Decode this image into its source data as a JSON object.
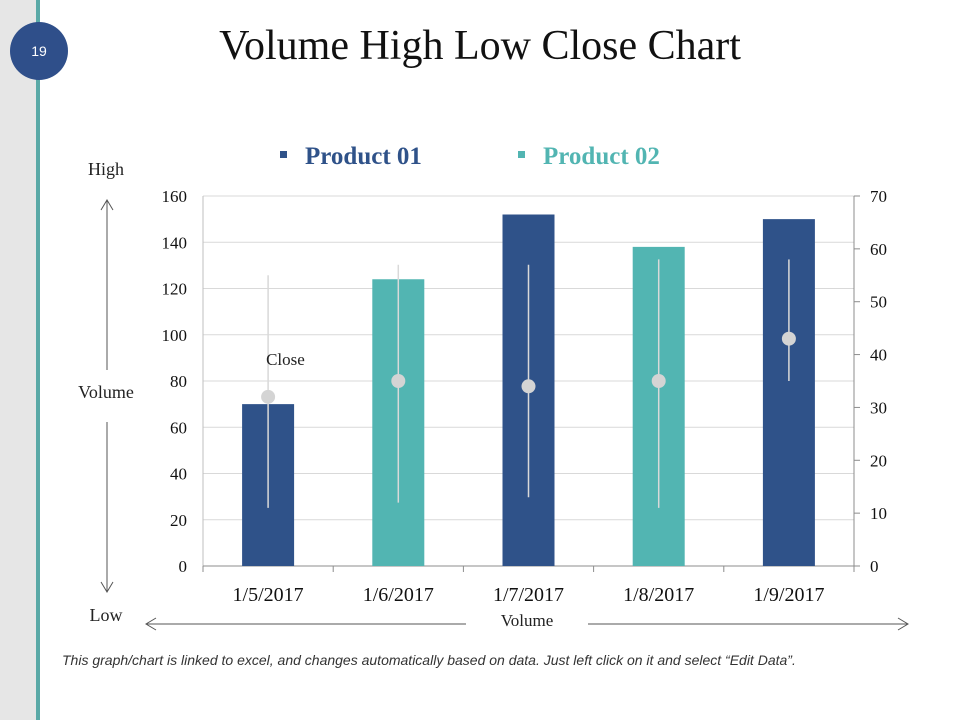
{
  "page_number": "19",
  "slide_title": "Volume High Low Close Chart",
  "footer_note": "This graph/chart is linked to excel, and changes automatically based on data. Just left click on it and select “Edit Data”.",
  "colors": {
    "product01": "#2f5289",
    "product02": "#52b5b2",
    "hilo_line": "#d9d9d9",
    "close_marker": "#d4d4d4",
    "accent_strip": "#5aa9a7"
  },
  "chart_data": {
    "type": "bar",
    "categories": [
      "1/5/2017",
      "1/6/2017",
      "1/7/2017",
      "1/8/2017",
      "1/9/2017"
    ],
    "series": [
      {
        "name": "Product 01",
        "values": [
          70,
          null,
          152,
          null,
          150
        ]
      },
      {
        "name": "Product 02",
        "values": [
          null,
          124,
          null,
          138,
          null
        ]
      }
    ],
    "bar_series_by_category": [
      "Product 01",
      "Product 02",
      "Product 01",
      "Product 02",
      "Product 01"
    ],
    "high": [
      55,
      57,
      57,
      58,
      58
    ],
    "low": [
      11,
      12,
      13,
      11,
      35
    ],
    "close": [
      32,
      35,
      34,
      35,
      43
    ],
    "close_label": "Close",
    "y_left": {
      "ylim": [
        0,
        160
      ],
      "ticks": [
        "0",
        "20",
        "40",
        "60",
        "80",
        "100",
        "120",
        "140",
        "160"
      ]
    },
    "y_right": {
      "ylim": [
        0,
        70
      ],
      "ticks": [
        "0",
        "10",
        "20",
        "30",
        "40",
        "50",
        "60",
        "70"
      ]
    },
    "axis_annotations": {
      "high": "High",
      "low": "Low",
      "y_volume": "Volume",
      "x_volume": "Volume"
    },
    "legend": [
      "Product 01",
      "Product 02"
    ],
    "legend_position": "top",
    "grid": true
  }
}
